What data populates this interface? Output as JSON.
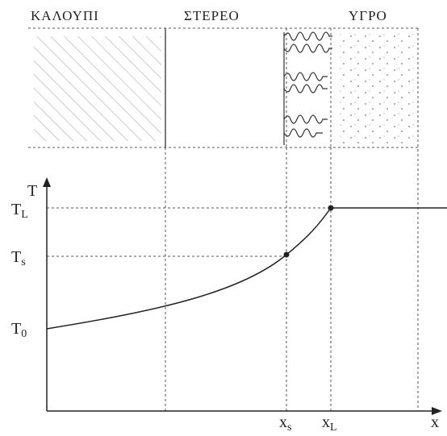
{
  "regions": {
    "mold": "ΚΑΛΟΥΠΙ",
    "solid": "ΣΤΕΡΕΟ",
    "liquid": "ΥΓΡΟ"
  },
  "axes": {
    "y_label": "T",
    "x_label": "x"
  },
  "y_marks": {
    "liquidus": {
      "main": "T",
      "sub": "L"
    },
    "solidus": {
      "main": "T",
      "sub": "s"
    },
    "initial": {
      "main": "T",
      "sub": "0"
    }
  },
  "x_marks": {
    "solidus": {
      "main": "x",
      "sub": "s"
    },
    "liquidus": {
      "main": "x",
      "sub": "L"
    }
  }
}
